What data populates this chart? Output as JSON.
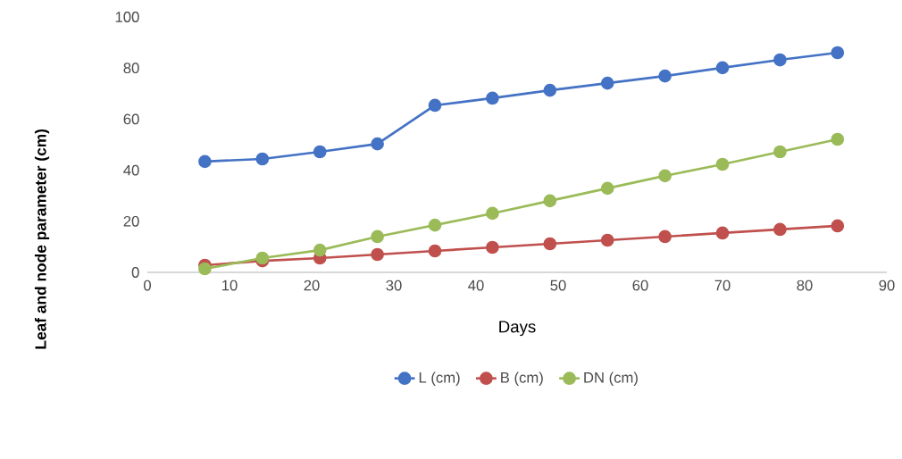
{
  "chart_data": {
    "type": "line",
    "xlabel": "Days",
    "ylabel": "Leaf and node parameter (cm)",
    "x": [
      7,
      14,
      21,
      28,
      35,
      42,
      49,
      56,
      63,
      70,
      77,
      84
    ],
    "series": [
      {
        "name": "L (cm)",
        "color": "#4472c4",
        "values": [
          43.4,
          44.4,
          47.2,
          50.3,
          65.4,
          68.2,
          71.3,
          74.1,
          76.9,
          80.1,
          83.2,
          86.0
        ]
      },
      {
        "name": "B (cm)",
        "color": "#c0504d",
        "values": [
          2.8,
          4.5,
          5.6,
          7.0,
          8.4,
          9.8,
          11.2,
          12.6,
          14.0,
          15.4,
          16.8,
          18.2
        ]
      },
      {
        "name": "DN (cm)",
        "color": "#9bbb59",
        "values": [
          1.4,
          5.6,
          8.7,
          14.0,
          18.5,
          23.1,
          28.0,
          32.9,
          37.8,
          42.3,
          47.2,
          52.1
        ]
      }
    ],
    "xlim": [
      0,
      90
    ],
    "xticks": [
      0,
      10,
      20,
      30,
      40,
      50,
      60,
      70,
      80,
      90
    ],
    "ylim": [
      0,
      100
    ],
    "yticks": [
      0,
      20,
      40,
      60,
      80,
      100
    ],
    "legend": "bottom",
    "marker": "circle",
    "line_style": "solid"
  }
}
